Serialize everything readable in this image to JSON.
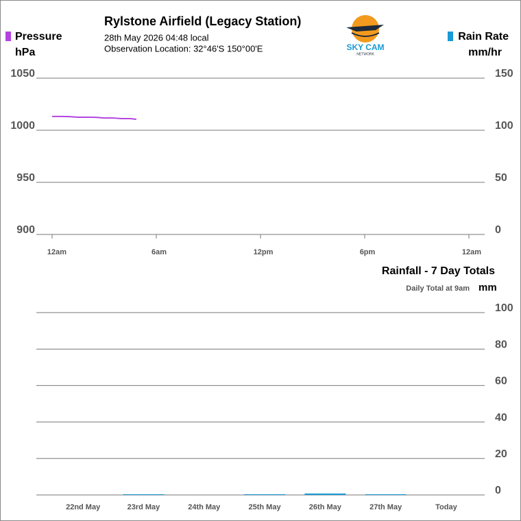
{
  "logo": {
    "name": "SKY CAM",
    "sub": "NETWORK"
  },
  "chart_data": [
    {
      "type": "line",
      "title": "Rylstone Airfield (Legacy Station)",
      "subtitle": "28th May 2026  04:48 local",
      "location": "Observation Location: 32°46'S 150°00'E",
      "ylabel": "hPa",
      "y2label": "mm/hr",
      "x": [
        0,
        0.5,
        1,
        1.5,
        2,
        2.5,
        3,
        3.5,
        4,
        4.5,
        4.85
      ],
      "xlim": [
        0,
        24
      ],
      "xticks": [
        {
          "value": 0,
          "label": "12am"
        },
        {
          "value": 6,
          "label": "6am"
        },
        {
          "value": 12,
          "label": "12pm"
        },
        {
          "value": 18,
          "label": "6pm"
        },
        {
          "value": 24,
          "label": "12am"
        }
      ],
      "ylim": [
        900,
        1050
      ],
      "yticks": [
        900,
        950,
        1000,
        1050
      ],
      "y2lim": [
        0,
        150
      ],
      "y2ticks": [
        0,
        50,
        100,
        150
      ],
      "grid": true,
      "series": [
        {
          "name": "Pressure",
          "color": "#b344e0",
          "values": [
            1013.2,
            1013.2,
            1013.1,
            1012.5,
            1012.5,
            1012.4,
            1011.8,
            1011.8,
            1011.2,
            1011.2,
            1010.5
          ]
        },
        {
          "name": "Rain Rate",
          "color": "#1a9ad6",
          "axis": "y2",
          "values": [
            null,
            null,
            null,
            null,
            null,
            null,
            null,
            null,
            null,
            null,
            null
          ]
        }
      ]
    },
    {
      "type": "bar",
      "title": "Rainfall - 7 Day Totals",
      "subtitle": "Daily Total at 9am",
      "y2label": "mm",
      "categories": [
        "22nd May",
        "23rd May",
        "24th May",
        "25th May",
        "26th May",
        "27th May",
        "Today"
      ],
      "values": [
        0,
        0.4,
        0,
        0.4,
        0.8,
        0.4,
        0
      ],
      "color": "#1a9ad6",
      "ylim": [
        0,
        100
      ],
      "yticks": [
        0,
        20,
        40,
        60,
        80,
        100
      ],
      "grid": true
    }
  ]
}
